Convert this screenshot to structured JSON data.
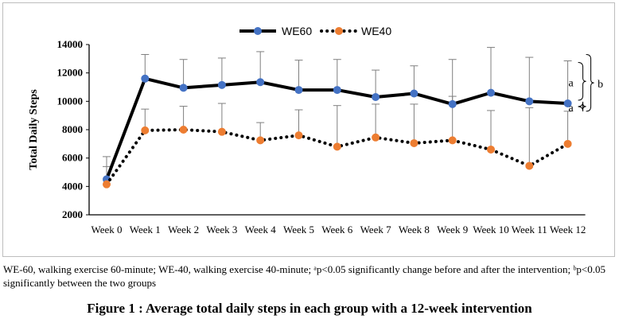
{
  "chart_data": {
    "type": "line",
    "title": "",
    "xlabel": "",
    "ylabel": "Total Daily Steps",
    "ylim": [
      2000,
      14000
    ],
    "yticks": [
      "14000",
      "12000",
      "10000",
      "8000",
      "6000",
      "4000",
      "2000"
    ],
    "ytick_values": [
      14000,
      12000,
      10000,
      8000,
      6000,
      4000,
      2000
    ],
    "grid": false,
    "legend_position": "top",
    "categories": [
      "Week 0",
      "Week 1",
      "Week 2",
      "Week 3",
      "Week 4",
      "Week 5",
      "Week 6",
      "Week 7",
      "Week 8",
      "Week 9",
      "Week 10",
      "Week 11",
      "Week 12"
    ],
    "series": [
      {
        "name": "WE60",
        "line_style": "solid",
        "line_color": "#000000",
        "marker_color": "#4472c4",
        "values": [
          4500,
          11600,
          10950,
          11150,
          11350,
          10800,
          10800,
          10300,
          10550,
          9800,
          10600,
          10000,
          9850
        ],
        "error_plus": [
          1600,
          1700,
          2000,
          1900,
          2150,
          2100,
          2150,
          1900,
          1950,
          3150,
          3200,
          3100,
          3000
        ]
      },
      {
        "name": "WE40",
        "line_style": "dotted",
        "line_color": "#000000",
        "marker_color": "#ed7d31",
        "values": [
          4150,
          7950,
          8000,
          7850,
          7250,
          7600,
          6800,
          7450,
          7050,
          7250,
          6600,
          5450,
          7000
        ],
        "error_plus": [
          1250,
          1500,
          1650,
          2000,
          1250,
          1800,
          2900,
          2350,
          2750,
          3100,
          2750,
          4100,
          2300
        ]
      }
    ],
    "annotations": [
      {
        "text": "a",
        "series": "WE60"
      },
      {
        "text": "a",
        "series": "WE40"
      },
      {
        "text": "b",
        "series": "between groups"
      }
    ]
  },
  "caption": {
    "note": "WE-60, walking exercise 60-minute; WE-40, walking exercise 40-minute; ᵃp<0.05 significantly change before and after the intervention; ᵇp<0.05 significantly between the two groups",
    "figure_title": "Figure 1 : Average total daily steps in each group with a 12-week intervention"
  }
}
